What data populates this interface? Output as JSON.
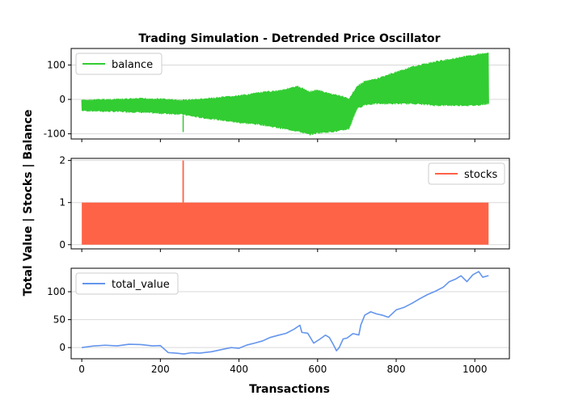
{
  "chart_data": {
    "type": "line",
    "title": "Trading Simulation - Detrended Price Oscillator",
    "xlabel": "Transactions",
    "ylabel": "Total Value | Stocks | Balance",
    "xlim": [
      -27,
      1088
    ],
    "xticks": [
      0,
      200,
      400,
      600,
      800,
      1000
    ],
    "grid": "horizontal",
    "panels": [
      {
        "name": "balance",
        "legend": "top-left",
        "color": "#32cd32",
        "ylim": [
          -115,
          148
        ],
        "yticks": [
          -100,
          0,
          100
        ],
        "envelope_x": [
          0,
          50,
          100,
          150,
          200,
          250,
          300,
          350,
          400,
          450,
          500,
          550,
          580,
          600,
          620,
          650,
          680,
          700,
          720,
          750,
          800,
          850,
          900,
          950,
          1000,
          1035
        ],
        "envelope_upper": [
          0,
          2,
          3,
          5,
          4,
          0,
          3,
          8,
          13,
          22,
          28,
          40,
          25,
          30,
          22,
          15,
          5,
          40,
          55,
          62,
          82,
          100,
          112,
          122,
          132,
          138
        ],
        "envelope_lower": [
          -35,
          -37,
          -38,
          -40,
          -43,
          -45,
          -55,
          -62,
          -70,
          -75,
          -85,
          -95,
          -105,
          -100,
          -98,
          -95,
          -88,
          -30,
          -18,
          -15,
          -15,
          -15,
          -20,
          -20,
          -20,
          -15
        ],
        "spikes": [
          {
            "x": 258,
            "y": -95
          }
        ]
      },
      {
        "name": "stocks",
        "legend": "top-right",
        "color": "#ff6347",
        "ylim": [
          -0.1,
          2.05
        ],
        "yticks": [
          0,
          1,
          2
        ],
        "x_range": [
          0,
          1035
        ],
        "low": 0,
        "high": 1,
        "spikes": [
          {
            "x": 258,
            "y": 2
          }
        ]
      },
      {
        "name": "total_value",
        "legend": "top-left",
        "color": "#6495ed",
        "ylim": [
          -20,
          142
        ],
        "yticks": [
          0,
          50,
          100
        ],
        "x": [
          0,
          30,
          60,
          90,
          120,
          150,
          180,
          200,
          220,
          240,
          260,
          280,
          300,
          330,
          360,
          380,
          400,
          420,
          440,
          460,
          480,
          500,
          520,
          540,
          555,
          560,
          575,
          590,
          605,
          620,
          630,
          640,
          648,
          655,
          665,
          675,
          690,
          705,
          710,
          720,
          735,
          750,
          765,
          780,
          800,
          820,
          840,
          860,
          880,
          900,
          920,
          935,
          950,
          965,
          980,
          995,
          1010,
          1020,
          1035
        ],
        "values": [
          0,
          2,
          4,
          3,
          6,
          5,
          3,
          3,
          -8,
          -10,
          -12,
          -9,
          -10,
          -8,
          -3,
          0,
          -2,
          5,
          8,
          12,
          18,
          22,
          25,
          32,
          40,
          28,
          25,
          8,
          15,
          22,
          18,
          5,
          -5,
          0,
          15,
          18,
          25,
          22,
          40,
          58,
          65,
          60,
          58,
          55,
          68,
          72,
          80,
          88,
          95,
          100,
          108,
          118,
          122,
          128,
          118,
          130,
          136,
          126,
          128
        ]
      }
    ]
  }
}
